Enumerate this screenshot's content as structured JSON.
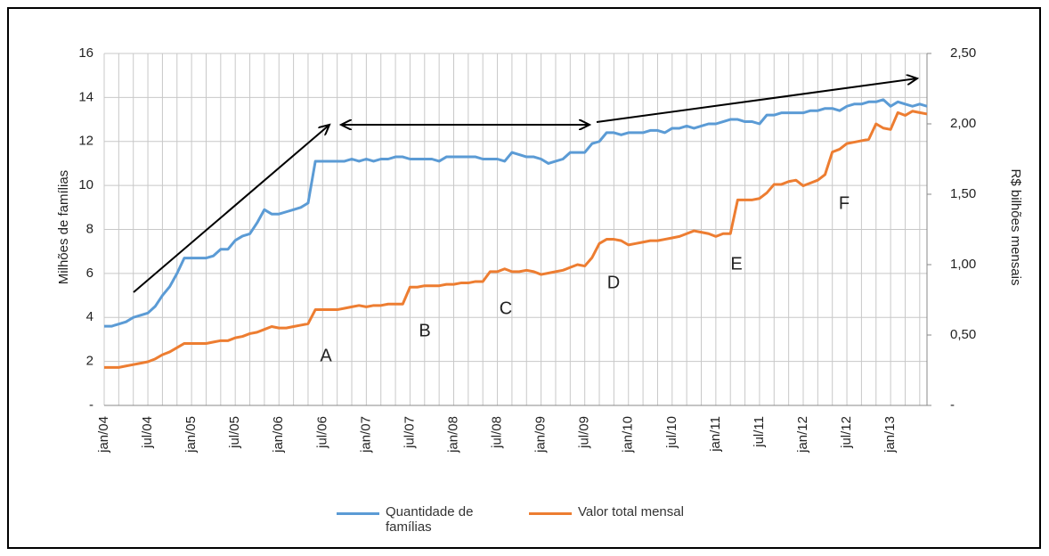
{
  "chart_data": {
    "type": "line",
    "y_label": "Milhões de famílias",
    "y2_label": "R$ bilhões mensais",
    "categories": [
      "jan/04",
      null,
      null,
      null,
      null,
      null,
      "jul/04",
      null,
      null,
      null,
      null,
      null,
      "jan/05",
      null,
      null,
      null,
      null,
      null,
      "jul/05",
      null,
      null,
      null,
      null,
      null,
      "jan/06",
      null,
      null,
      null,
      null,
      null,
      "jul/06",
      null,
      null,
      null,
      null,
      null,
      "jan/07",
      null,
      null,
      null,
      null,
      null,
      "jul/07",
      null,
      null,
      null,
      null,
      null,
      "jan/08",
      null,
      null,
      null,
      null,
      null,
      "jul/08",
      null,
      null,
      null,
      null,
      null,
      "jan/09",
      null,
      null,
      null,
      null,
      null,
      "jul/09",
      null,
      null,
      null,
      null,
      null,
      "jan/10",
      null,
      null,
      null,
      null,
      null,
      "jul/10",
      null,
      null,
      null,
      null,
      null,
      "jan/11",
      null,
      null,
      null,
      null,
      null,
      "jul/11",
      null,
      null,
      null,
      null,
      null,
      "jan/12",
      null,
      null,
      null,
      null,
      null,
      "jul/12",
      null,
      null,
      null,
      null,
      null,
      "jan/13",
      null,
      null,
      null,
      null,
      null
    ],
    "series": [
      {
        "name": "Quantidade de famílias",
        "color": "#5b9bd5",
        "values": [
          3.6,
          3.6,
          3.7,
          3.8,
          4.0,
          4.1,
          4.2,
          4.5,
          5.0,
          5.4,
          6.0,
          6.7,
          6.7,
          6.7,
          6.7,
          6.8,
          7.1,
          7.1,
          7.5,
          7.7,
          7.8,
          8.3,
          8.9,
          8.7,
          8.7,
          8.8,
          8.9,
          9.0,
          9.2,
          11.1,
          11.1,
          11.1,
          11.1,
          11.1,
          11.2,
          11.1,
          11.2,
          11.1,
          11.2,
          11.2,
          11.3,
          11.3,
          11.2,
          11.2,
          11.2,
          11.2,
          11.1,
          11.3,
          11.3,
          11.3,
          11.3,
          11.3,
          11.2,
          11.2,
          11.2,
          11.1,
          11.5,
          11.4,
          11.3,
          11.3,
          11.2,
          11.0,
          11.1,
          11.2,
          11.5,
          11.5,
          11.5,
          11.9,
          12.0,
          12.4,
          12.4,
          12.3,
          12.4,
          12.4,
          12.4,
          12.5,
          12.5,
          12.4,
          12.6,
          12.6,
          12.7,
          12.6,
          12.7,
          12.8,
          12.8,
          12.9,
          13.0,
          13.0,
          12.9,
          12.9,
          12.8,
          13.2,
          13.2,
          13.3,
          13.3,
          13.3,
          13.3,
          13.4,
          13.4,
          13.5,
          13.5,
          13.4,
          13.6,
          13.7,
          13.7,
          13.8,
          13.8,
          13.9,
          13.6,
          13.8,
          13.7,
          13.6,
          13.7,
          13.6
        ]
      },
      {
        "name": "Valor total mensal",
        "color": "#ed7d31",
        "axis": "y2",
        "values": [
          0.27,
          0.27,
          0.27,
          0.28,
          0.29,
          0.3,
          0.31,
          0.33,
          0.36,
          0.38,
          0.41,
          0.44,
          0.44,
          0.44,
          0.44,
          0.45,
          0.46,
          0.46,
          0.48,
          0.49,
          0.51,
          0.52,
          0.54,
          0.56,
          0.55,
          0.55,
          0.56,
          0.57,
          0.58,
          0.68,
          0.68,
          0.68,
          0.68,
          0.69,
          0.7,
          0.71,
          0.7,
          0.71,
          0.71,
          0.72,
          0.72,
          0.72,
          0.84,
          0.84,
          0.85,
          0.85,
          0.85,
          0.86,
          0.86,
          0.87,
          0.87,
          0.88,
          0.88,
          0.95,
          0.95,
          0.97,
          0.95,
          0.95,
          0.96,
          0.95,
          0.93,
          0.94,
          0.95,
          0.96,
          0.98,
          1.0,
          0.99,
          1.05,
          1.15,
          1.18,
          1.18,
          1.17,
          1.14,
          1.15,
          1.16,
          1.17,
          1.17,
          1.18,
          1.19,
          1.2,
          1.22,
          1.24,
          1.23,
          1.22,
          1.2,
          1.22,
          1.22,
          1.46,
          1.46,
          1.46,
          1.47,
          1.51,
          1.57,
          1.57,
          1.59,
          1.6,
          1.56,
          1.58,
          1.6,
          1.64,
          1.8,
          1.82,
          1.86,
          1.87,
          1.88,
          1.89,
          2.0,
          1.97,
          1.96,
          2.08,
          2.06,
          2.09,
          2.08,
          2.07
        ]
      }
    ],
    "ylim": [
      0,
      16
    ],
    "yticks": [
      {
        "value": 0,
        "label": "-"
      },
      2,
      4,
      6,
      8,
      10,
      12,
      14,
      16
    ],
    "y2lim": [
      0,
      2.5
    ],
    "y2ticks": [
      {
        "value": 0,
        "label": "-"
      },
      {
        "value": 0.5,
        "label": "0,50"
      },
      {
        "value": 1,
        "label": "1,00"
      },
      {
        "value": 1.5,
        "label": "1,50"
      },
      {
        "value": 2,
        "label": "2,00"
      },
      {
        "value": 2.5,
        "label": "2,50"
      }
    ],
    "grid": true,
    "annotations": [
      "A",
      "B",
      "C",
      "D",
      "E",
      "F"
    ]
  }
}
